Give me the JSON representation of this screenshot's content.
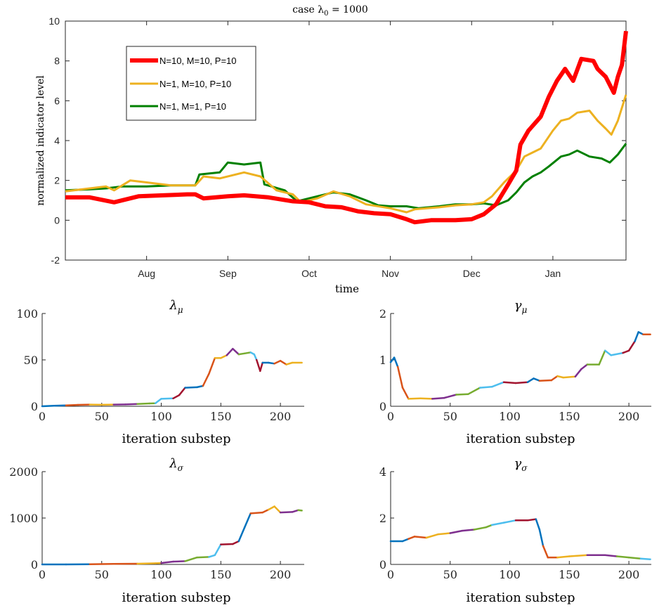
{
  "chart_data": [
    {
      "type": "line",
      "title": "case λ0 = 1000",
      "title_main": "case λ",
      "title_sub": "0",
      "title_rest": " = 1000",
      "xlabel": "time",
      "ylabel": "normalized indicator level",
      "ylim": [
        -2,
        10
      ],
      "yticks": [
        "-2",
        "0",
        "2",
        "4",
        "6",
        "8",
        "10"
      ],
      "xticks": [
        "Aug",
        "Sep",
        "Oct",
        "Nov",
        "Dec",
        "Jan"
      ],
      "x_axis": "time (months, fractional position)",
      "xlim_months": [
        6.0,
        12.9
      ],
      "legend_position": "upper-left",
      "series": [
        {
          "name": "N=10, M=10, P=10",
          "color": "#ff0000",
          "width": 6,
          "points": [
            [
              6.0,
              1.15
            ],
            [
              6.3,
              1.15
            ],
            [
              6.6,
              0.9
            ],
            [
              6.9,
              1.2
            ],
            [
              7.2,
              1.25
            ],
            [
              7.5,
              1.3
            ],
            [
              7.6,
              1.3
            ],
            [
              7.7,
              1.1
            ],
            [
              8.0,
              1.2
            ],
            [
              8.2,
              1.25
            ],
            [
              8.5,
              1.15
            ],
            [
              8.8,
              0.95
            ],
            [
              9.0,
              0.9
            ],
            [
              9.2,
              0.7
            ],
            [
              9.4,
              0.65
            ],
            [
              9.6,
              0.45
            ],
            [
              9.8,
              0.35
            ],
            [
              10.0,
              0.3
            ],
            [
              10.2,
              0.05
            ],
            [
              10.3,
              -0.1
            ],
            [
              10.5,
              0.0
            ],
            [
              10.8,
              0.0
            ],
            [
              11.0,
              0.05
            ],
            [
              11.15,
              0.3
            ],
            [
              11.3,
              0.8
            ],
            [
              11.45,
              1.8
            ],
            [
              11.55,
              2.5
            ],
            [
              11.6,
              3.8
            ],
            [
              11.7,
              4.5
            ],
            [
              11.85,
              5.2
            ],
            [
              11.95,
              6.2
            ],
            [
              12.05,
              7.0
            ],
            [
              12.15,
              7.6
            ],
            [
              12.25,
              7.0
            ],
            [
              12.35,
              8.1
            ],
            [
              12.5,
              8.0
            ],
            [
              12.55,
              7.6
            ],
            [
              12.65,
              7.2
            ],
            [
              12.75,
              6.4
            ],
            [
              12.8,
              7.2
            ],
            [
              12.85,
              7.8
            ],
            [
              12.9,
              9.5
            ]
          ]
        },
        {
          "name": "N=1, M=10, P=10",
          "color": "#edb120",
          "width": 3,
          "points": [
            [
              6.0,
              1.45
            ],
            [
              6.3,
              1.6
            ],
            [
              6.5,
              1.7
            ],
            [
              6.6,
              1.5
            ],
            [
              6.8,
              2.0
            ],
            [
              7.0,
              1.9
            ],
            [
              7.3,
              1.75
            ],
            [
              7.6,
              1.75
            ],
            [
              7.7,
              2.2
            ],
            [
              7.9,
              2.1
            ],
            [
              8.2,
              2.4
            ],
            [
              8.4,
              2.2
            ],
            [
              8.6,
              1.5
            ],
            [
              8.8,
              1.3
            ],
            [
              8.9,
              0.9
            ],
            [
              9.1,
              1.1
            ],
            [
              9.3,
              1.45
            ],
            [
              9.5,
              1.2
            ],
            [
              9.7,
              0.8
            ],
            [
              10.0,
              0.6
            ],
            [
              10.2,
              0.4
            ],
            [
              10.3,
              0.55
            ],
            [
              10.6,
              0.65
            ],
            [
              10.8,
              0.75
            ],
            [
              11.0,
              0.8
            ],
            [
              11.15,
              0.9
            ],
            [
              11.25,
              1.2
            ],
            [
              11.4,
              1.9
            ],
            [
              11.55,
              2.5
            ],
            [
              11.65,
              3.2
            ],
            [
              11.75,
              3.4
            ],
            [
              11.85,
              3.6
            ],
            [
              12.0,
              4.5
            ],
            [
              12.1,
              5.0
            ],
            [
              12.2,
              5.1
            ],
            [
              12.3,
              5.4
            ],
            [
              12.45,
              5.5
            ],
            [
              12.55,
              5.0
            ],
            [
              12.65,
              4.6
            ],
            [
              12.72,
              4.3
            ],
            [
              12.8,
              5.0
            ],
            [
              12.9,
              6.3
            ]
          ]
        },
        {
          "name": "N=1, M=1, P=10",
          "color": "#008000",
          "width": 3,
          "points": [
            [
              6.0,
              1.5
            ],
            [
              6.3,
              1.55
            ],
            [
              6.5,
              1.6
            ],
            [
              6.7,
              1.7
            ],
            [
              7.0,
              1.7
            ],
            [
              7.3,
              1.75
            ],
            [
              7.6,
              1.75
            ],
            [
              7.65,
              2.3
            ],
            [
              7.9,
              2.4
            ],
            [
              8.0,
              2.9
            ],
            [
              8.2,
              2.8
            ],
            [
              8.4,
              2.9
            ],
            [
              8.45,
              1.8
            ],
            [
              8.7,
              1.5
            ],
            [
              8.85,
              0.95
            ],
            [
              9.1,
              1.2
            ],
            [
              9.3,
              1.4
            ],
            [
              9.5,
              1.3
            ],
            [
              9.7,
              1.0
            ],
            [
              9.85,
              0.75
            ],
            [
              10.0,
              0.7
            ],
            [
              10.2,
              0.7
            ],
            [
              10.35,
              0.6
            ],
            [
              10.6,
              0.7
            ],
            [
              10.8,
              0.8
            ],
            [
              11.0,
              0.8
            ],
            [
              11.15,
              0.85
            ],
            [
              11.3,
              0.75
            ],
            [
              11.45,
              1.0
            ],
            [
              11.55,
              1.4
            ],
            [
              11.65,
              1.9
            ],
            [
              11.75,
              2.2
            ],
            [
              11.85,
              2.4
            ],
            [
              11.95,
              2.7
            ],
            [
              12.1,
              3.2
            ],
            [
              12.2,
              3.3
            ],
            [
              12.3,
              3.5
            ],
            [
              12.45,
              3.2
            ],
            [
              12.6,
              3.1
            ],
            [
              12.7,
              2.9
            ],
            [
              12.8,
              3.3
            ],
            [
              12.9,
              3.85
            ]
          ]
        }
      ]
    },
    {
      "type": "line",
      "title": "λμ",
      "title_main": "λ",
      "title_sub": "μ",
      "xlabel": "iteration substep",
      "xlim": [
        0,
        220
      ],
      "xticks": [
        "0",
        "50",
        "100",
        "150",
        "200"
      ],
      "ylim": [
        0,
        100
      ],
      "yticks": [
        "0",
        "50",
        "100"
      ],
      "points": [
        [
          0,
          0
        ],
        [
          10,
          0.5
        ],
        [
          20,
          1
        ],
        [
          30,
          1.5
        ],
        [
          40,
          1.8
        ],
        [
          50,
          1.6
        ],
        [
          60,
          1.8
        ],
        [
          70,
          2
        ],
        [
          80,
          2.4
        ],
        [
          90,
          3
        ],
        [
          95,
          3.2
        ],
        [
          100,
          8
        ],
        [
          110,
          8.5
        ],
        [
          115,
          12
        ],
        [
          120,
          20
        ],
        [
          130,
          20.5
        ],
        [
          135,
          22
        ],
        [
          140,
          35
        ],
        [
          145,
          52
        ],
        [
          150,
          52
        ],
        [
          155,
          55
        ],
        [
          160,
          62
        ],
        [
          165,
          56
        ],
        [
          170,
          57
        ],
        [
          175,
          58
        ],
        [
          178,
          56
        ],
        [
          180,
          50
        ],
        [
          183,
          38
        ],
        [
          185,
          47
        ],
        [
          190,
          47
        ],
        [
          195,
          46
        ],
        [
          200,
          49
        ],
        [
          205,
          45
        ],
        [
          210,
          47
        ],
        [
          218,
          47
        ]
      ]
    },
    {
      "type": "line",
      "title": "γμ",
      "title_main": "γ",
      "title_sub": "μ",
      "xlabel": "iteration substep",
      "xlim": [
        0,
        220
      ],
      "xticks": [
        "0",
        "50",
        "100",
        "150",
        "200"
      ],
      "ylim": [
        0,
        2
      ],
      "yticks": [
        "0",
        "1",
        "2"
      ],
      "points": [
        [
          0,
          0.95
        ],
        [
          3,
          1.05
        ],
        [
          6,
          0.85
        ],
        [
          10,
          0.4
        ],
        [
          15,
          0.16
        ],
        [
          25,
          0.17
        ],
        [
          35,
          0.16
        ],
        [
          45,
          0.18
        ],
        [
          55,
          0.25
        ],
        [
          65,
          0.26
        ],
        [
          75,
          0.4
        ],
        [
          85,
          0.42
        ],
        [
          95,
          0.52
        ],
        [
          105,
          0.5
        ],
        [
          115,
          0.52
        ],
        [
          120,
          0.6
        ],
        [
          125,
          0.55
        ],
        [
          135,
          0.56
        ],
        [
          140,
          0.65
        ],
        [
          145,
          0.62
        ],
        [
          155,
          0.64
        ],
        [
          160,
          0.8
        ],
        [
          165,
          0.9
        ],
        [
          175,
          0.9
        ],
        [
          180,
          1.2
        ],
        [
          185,
          1.1
        ],
        [
          195,
          1.15
        ],
        [
          200,
          1.2
        ],
        [
          205,
          1.4
        ],
        [
          208,
          1.6
        ],
        [
          212,
          1.55
        ],
        [
          218,
          1.55
        ]
      ]
    },
    {
      "type": "line",
      "title": "λσ",
      "title_main": "λ",
      "title_sub": "σ",
      "xlabel": "iteration substep",
      "xlim": [
        0,
        220
      ],
      "xticks": [
        "0",
        "50",
        "100",
        "150",
        "200"
      ],
      "ylim": [
        0,
        2000
      ],
      "yticks": [
        "0",
        "1000",
        "2000"
      ],
      "points": [
        [
          0,
          0
        ],
        [
          20,
          0
        ],
        [
          40,
          5
        ],
        [
          60,
          10
        ],
        [
          80,
          15
        ],
        [
          95,
          25
        ],
        [
          100,
          30
        ],
        [
          110,
          60
        ],
        [
          120,
          70
        ],
        [
          130,
          150
        ],
        [
          140,
          160
        ],
        [
          145,
          200
        ],
        [
          150,
          430
        ],
        [
          160,
          440
        ],
        [
          165,
          500
        ],
        [
          170,
          800
        ],
        [
          175,
          1100
        ],
        [
          185,
          1120
        ],
        [
          190,
          1180
        ],
        [
          195,
          1250
        ],
        [
          200,
          1120
        ],
        [
          210,
          1130
        ],
        [
          215,
          1170
        ],
        [
          218,
          1160
        ]
      ]
    },
    {
      "type": "line",
      "title": "γσ",
      "title_main": "γ",
      "title_sub": "σ",
      "xlabel": "iteration substep",
      "xlim": [
        0,
        220
      ],
      "xticks": [
        "0",
        "50",
        "100",
        "150",
        "200"
      ],
      "ylim": [
        0,
        4
      ],
      "yticks": [
        "0",
        "2",
        "4"
      ],
      "points": [
        [
          0,
          1.0
        ],
        [
          10,
          1.0
        ],
        [
          15,
          1.1
        ],
        [
          20,
          1.2
        ],
        [
          30,
          1.15
        ],
        [
          40,
          1.3
        ],
        [
          50,
          1.35
        ],
        [
          60,
          1.45
        ],
        [
          70,
          1.5
        ],
        [
          80,
          1.6
        ],
        [
          85,
          1.7
        ],
        [
          95,
          1.8
        ],
        [
          105,
          1.9
        ],
        [
          115,
          1.9
        ],
        [
          122,
          1.95
        ],
        [
          125,
          1.5
        ],
        [
          128,
          0.8
        ],
        [
          132,
          0.3
        ],
        [
          140,
          0.3
        ],
        [
          150,
          0.35
        ],
        [
          165,
          0.4
        ],
        [
          180,
          0.4
        ],
        [
          190,
          0.35
        ],
        [
          200,
          0.3
        ],
        [
          210,
          0.25
        ],
        [
          218,
          0.22
        ]
      ]
    }
  ]
}
